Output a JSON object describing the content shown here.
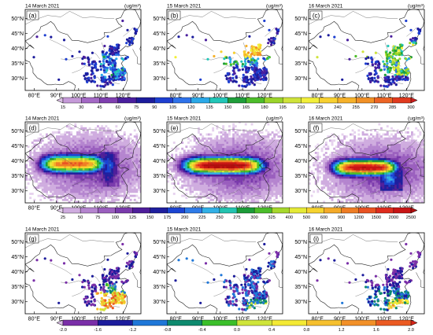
{
  "figure": {
    "unit_label": "(ug/m³)",
    "rows": [
      {
        "style": "sites",
        "colorbar": {
          "labels": [
            "15",
            "30",
            "45",
            "60",
            "75",
            "90",
            "105",
            "120",
            "135",
            "150",
            "165",
            "180",
            "195",
            "210",
            "225",
            "240",
            "255",
            "270",
            "285",
            "300"
          ],
          "colors": [
            "#dcbfe6",
            "#c59ad8",
            "#a469c5",
            "#7f3fb0",
            "#4a1f9e",
            "#1c1c9c",
            "#1e3fd0",
            "#2f72ea",
            "#2ba9e8",
            "#22c6b8",
            "#1f9e3a",
            "#4dbd2a",
            "#9bd42a",
            "#cfe33a",
            "#f2ef3a",
            "#f8d030",
            "#f6b12a",
            "#f19026",
            "#ec6424",
            "#e03a1e",
            "#cc1c1c"
          ]
        },
        "panels": [
          {
            "label": "(a)",
            "date": "14 March 2021",
            "unit": "(ug/m³)"
          },
          {
            "label": "(b)",
            "date": "15 March 2021",
            "unit": "(ug/m³)"
          },
          {
            "label": "(c)",
            "date": "16 March 2021",
            "unit": "(ug/m³)"
          }
        ]
      },
      {
        "style": "field",
        "colorbar": {
          "labels": [
            "25",
            "50",
            "75",
            "100",
            "125",
            "150",
            "175",
            "200",
            "225",
            "250",
            "275",
            "300",
            "325",
            "400",
            "500",
            "600",
            "900",
            "1200",
            "1500",
            "2000",
            "2500"
          ],
          "colors": [
            "#e6d2ee",
            "#cfacdf",
            "#b585cf",
            "#9a5fbe",
            "#7a3aac",
            "#4e1e9a",
            "#1f1f9e",
            "#1b44d2",
            "#2e7be8",
            "#31b0e6",
            "#23c3b0",
            "#1c9b38",
            "#4bbd2a",
            "#a6d82c",
            "#e5ea36",
            "#f6d32f",
            "#f4aa29",
            "#ef7d24",
            "#e95222",
            "#df2b1d",
            "#c81414",
            "#b00e0e"
          ]
        },
        "panels": [
          {
            "label": "(d)",
            "date": "14 March 2021",
            "unit": "(ug/m³)"
          },
          {
            "label": "(e)",
            "date": "15 March 2021",
            "unit": "(ug/m³)"
          },
          {
            "label": "(f)",
            "date": "16 March 2021",
            "unit": "(ug/m³)"
          }
        ]
      },
      {
        "style": "sites",
        "colorbar": {
          "labels": [
            "-2.0",
            "-1.6",
            "-1.2",
            "-0.8",
            "-0.4",
            "0.0",
            "0.4",
            "0.8",
            "1.2",
            "1.6",
            "2.0"
          ],
          "colors": [
            "#d9bde6",
            "#7a2fa8",
            "#1c1c9c",
            "#1f77d8",
            "#0e8a6e",
            "#3bbf2a",
            "#cfe53a",
            "#f4ea34",
            "#f6c02e",
            "#f29028",
            "#eb5a22",
            "#d62418"
          ]
        },
        "panels": [
          {
            "label": "(g)",
            "date": "14 March 2021",
            "unit": ""
          },
          {
            "label": "(h)",
            "date": "15 March 2021",
            "unit": ""
          },
          {
            "label": "(i)",
            "date": "16 March 2021",
            "unit": ""
          }
        ]
      }
    ],
    "lon_ticks": [
      "80°E",
      "90°E",
      "100°E",
      "110°E",
      "120°E"
    ],
    "lat_ticks": [
      "50°N",
      "45°N",
      "40°N",
      "35°N",
      "30°N"
    ],
    "map_extent": {
      "lon": [
        76,
        128
      ],
      "lat": [
        26,
        53
      ]
    }
  }
}
